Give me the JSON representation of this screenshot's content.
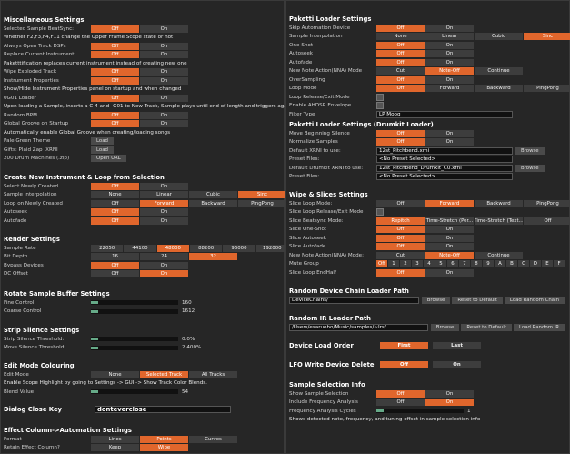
{
  "left": [
    {
      "title": "Miscellaneous Settings",
      "rows": [
        {
          "label": "Selected Sample BeatSync:",
          "buttons": [
            "Off",
            "On"
          ],
          "selected": 0
        },
        {
          "note": "Whether F2,F3,F4,F11 change the Upper Frame Scope state or not"
        },
        {
          "label": "Always Open Track DSPs",
          "buttons": [
            "Off",
            "On"
          ],
          "selected": 0
        },
        {
          "label": "Replace Current Instrument",
          "buttons": [
            "Off",
            "On"
          ],
          "selected": 0
        },
        {
          "note": "Paketttification replaces current instrument instead of creating new one"
        },
        {
          "label": "Wipe Exploded Track",
          "buttons": [
            "Off",
            "On"
          ],
          "selected": 0
        },
        {
          "label": "Instrument Properties",
          "buttons": [
            "Off",
            "On"
          ],
          "selected": 0
        },
        {
          "note": "Show/Hide Instrument Properties panel on startup and when changed"
        },
        {
          "label": "0G01 Loader",
          "buttons": [
            "Off",
            "On"
          ],
          "selected": 0
        },
        {
          "note": "Upon loading a Sample, inserts a C-4 and -G01 to New Track, Sample plays until end of length and triggers again."
        },
        {
          "label": "Random BPM",
          "buttons": [
            "Off",
            "On"
          ],
          "selected": 0
        },
        {
          "label": "Global Groove on Startup",
          "buttons": [
            "Off",
            "On"
          ],
          "selected": 0
        },
        {
          "note": "Automatically enable Global Groove when creating/loading songs"
        },
        {
          "label": "Pale Green Theme",
          "actions": [
            "Load"
          ]
        },
        {
          "label": "Gifts: Plaid Zap .XRNI",
          "actions": [
            "Load"
          ]
        },
        {
          "label": "200 Drum Machines (.zip)",
          "actions": [
            "Open URL"
          ]
        }
      ]
    },
    {
      "title": "Create New Instrument & Loop from Selection",
      "rows": [
        {
          "label": "Select Newly Created",
          "buttons": [
            "Off",
            "On"
          ],
          "selected": 0
        },
        {
          "label": "Sample Interpolation",
          "buttons": [
            "None",
            "Linear",
            "Cubic",
            "Sinc"
          ],
          "selected": 3
        },
        {
          "label": "Loop on Newly Created",
          "buttons": [
            "Off",
            "Forward",
            "Backward",
            "PingPong"
          ],
          "selected": 1
        },
        {
          "label": "Autoseek",
          "buttons": [
            "Off",
            "On"
          ],
          "selected": 0
        },
        {
          "label": "Autofade",
          "buttons": [
            "Off",
            "On"
          ],
          "selected": 0
        }
      ]
    },
    {
      "title": "Render Settings",
      "rows": [
        {
          "label": "Sample Rate",
          "buttons": [
            "22050",
            "44100",
            "48000",
            "88200",
            "96000",
            "192000"
          ],
          "selected": 2
        },
        {
          "label": "Bit Depth",
          "buttons": [
            "16",
            "24",
            "32"
          ],
          "selected": 2
        },
        {
          "label": "Bypass Devices",
          "buttons": [
            "Off",
            "On"
          ],
          "selected": 0
        },
        {
          "label": "DC Offset",
          "buttons": [
            "Off",
            "On"
          ],
          "selected": 1
        }
      ]
    },
    {
      "title": "Rotate Sample Buffer Settings",
      "rows": [
        {
          "label": "Fine Control",
          "slider": "160"
        },
        {
          "label": "Coarse Control",
          "slider": "1612"
        }
      ]
    },
    {
      "title": "Strip Silence Settings",
      "rows": [
        {
          "label": "Strip Silence Threshold:",
          "slider": "0.0%"
        },
        {
          "label": "Move Silence Threshold:",
          "slider": "2.400%"
        }
      ]
    },
    {
      "title": "Edit Mode Colouring",
      "rows": [
        {
          "label": "Edit Mode",
          "buttons": [
            "None",
            "Selected Track",
            "All Tracks"
          ],
          "selected": 1
        },
        {
          "note": "Enable Scope Highlight by going to Settings -> GUI -> Show Track Color Blends."
        },
        {
          "label": "Blend Value",
          "slider": "54"
        }
      ]
    },
    {
      "title": "Dialog Close Key",
      "dropdown": "donteverclose",
      "rows": []
    },
    {
      "title": "Effect Column->Automation Settings",
      "rows": [
        {
          "label": "Format",
          "buttons": [
            "Lines",
            "Points",
            "Curves"
          ],
          "selected": 1
        },
        {
          "label": "Retain Effect Column?",
          "buttons": [
            "Keep",
            "Wipe"
          ],
          "selected": 1
        }
      ]
    }
  ],
  "right": [
    {
      "title": "Paketti Loader Settings",
      "rows": [
        {
          "label": "Skip Automation Device",
          "buttons": [
            "Off",
            "On"
          ],
          "selected": 0
        },
        {
          "label": "Sample Interpolation",
          "buttons": [
            "None",
            "Linear",
            "Cubic",
            "Sinc"
          ],
          "selected": 3
        },
        {
          "label": "One-Shot",
          "buttons": [
            "Off",
            "On"
          ],
          "selected": 0
        },
        {
          "label": "Autoseek",
          "buttons": [
            "Off",
            "On"
          ],
          "selected": 0
        },
        {
          "label": "Autofade",
          "buttons": [
            "Off",
            "On"
          ],
          "selected": 0
        },
        {
          "label": "New Note Action(NNA) Mode",
          "buttons": [
            "Cut",
            "Note-Off",
            "Continue"
          ],
          "selected": 1
        },
        {
          "label": "OverSampling",
          "buttons": [
            "Off",
            "On"
          ],
          "selected": 0
        },
        {
          "label": "Loop Mode",
          "buttons": [
            "Off",
            "Forward",
            "Backward",
            "PingPong"
          ],
          "selected": 0
        },
        {
          "label": "Loop Release/Exit Mode",
          "checkbox": false
        },
        {
          "label": "Enable AHDSR Envelope",
          "checkbox": false
        },
        {
          "label": "Filter Type",
          "dropdown": "LP Moog"
        }
      ]
    },
    {
      "title": "Paketti Loader Settings (Drumkit Loader)",
      "rows": [
        {
          "label": "Move Beginning Silence",
          "buttons": [
            "Off",
            "On"
          ],
          "selected": 0
        },
        {
          "label": "Normalize Samples",
          "buttons": [
            "Off",
            "On"
          ],
          "selected": 0
        },
        {
          "label": "Default XRNI to use:",
          "input": "12st_Pitchbend.xrni",
          "actions": [
            "Browse"
          ]
        },
        {
          "label": "Preset Files:",
          "dropdown": "<No Preset Selected>"
        },
        {
          "label": "Default Drumkit XRNI to use:",
          "input": "12st_Pitchbend_Drumkit_C0.xrni",
          "actions": [
            "Browse"
          ]
        },
        {
          "label": "Preset Files:",
          "dropdown": "<No Preset Selected>"
        }
      ]
    },
    {
      "title": "Wipe & Slices Settings",
      "rows": [
        {
          "label": "Slice Loop Mode:",
          "buttons": [
            "Off",
            "Forward",
            "Backward",
            "PingPong"
          ],
          "selected": 1
        },
        {
          "label": "Slice Loop Release/Exit Mode",
          "checkbox": false
        },
        {
          "label": "Slice Beatsync Mode:",
          "buttons": [
            "Repitch",
            "Time-Stretch (Per...",
            "Time-Stretch (Text...",
            "Off"
          ],
          "selected": 0
        },
        {
          "label": "Slice One-Shot",
          "buttons": [
            "Off",
            "On"
          ],
          "selected": 0
        },
        {
          "label": "Slice Autoseek",
          "buttons": [
            "Off",
            "On"
          ],
          "selected": 0
        },
        {
          "label": "Slice Autofade",
          "buttons": [
            "Off",
            "On"
          ],
          "selected": 0
        },
        {
          "label": "New Note Action(NNA) Mode:",
          "buttons": [
            "Cut",
            "Note-Off",
            "Continue"
          ],
          "selected": 1
        },
        {
          "label": "Mute Group",
          "buttons": [
            "Off",
            "1",
            "2",
            "3",
            "4",
            "5",
            "6",
            "7",
            "8",
            "9",
            "A",
            "B",
            "C",
            "D",
            "E",
            "F"
          ],
          "selected": 0
        },
        {
          "label": "Slice Loop EndHalf",
          "buttons": [
            "Off",
            "On"
          ],
          "selected": 0
        }
      ]
    },
    {
      "title": "Random Device Chain Loader Path",
      "rows": [
        {
          "input": "DeviceChains/",
          "actions": [
            "Browse",
            "Reset to Default",
            "Load Random Chain"
          ]
        }
      ]
    },
    {
      "title": "Random IR Loader Path",
      "rows": [
        {
          "input": "/Users/esaruoho/Music/samples/~Irs/",
          "actions": [
            "Browse",
            "Reset to Default",
            "Load Random IR"
          ]
        }
      ]
    },
    {
      "title": "Device Load Order",
      "buttons": [
        "First",
        "Last"
      ],
      "selected": 0,
      "rows": []
    },
    {
      "title": "LFO Write Device Delete",
      "buttons": [
        "Off",
        "On"
      ],
      "selected": 0,
      "rows": []
    },
    {
      "title": "Sample Selection Info",
      "rows": [
        {
          "label": "Show Sample Selection",
          "buttons": [
            "Off",
            "On"
          ],
          "selected": 0
        },
        {
          "label": "Include Frequency Analysis",
          "buttons": [
            "Off",
            "On"
          ],
          "selected": 1
        },
        {
          "label": "Frequency Analysis Cycles",
          "slider": "1"
        },
        {
          "note": "Shows detected note, frequency, and tuning offset in sample selection info"
        }
      ]
    }
  ]
}
